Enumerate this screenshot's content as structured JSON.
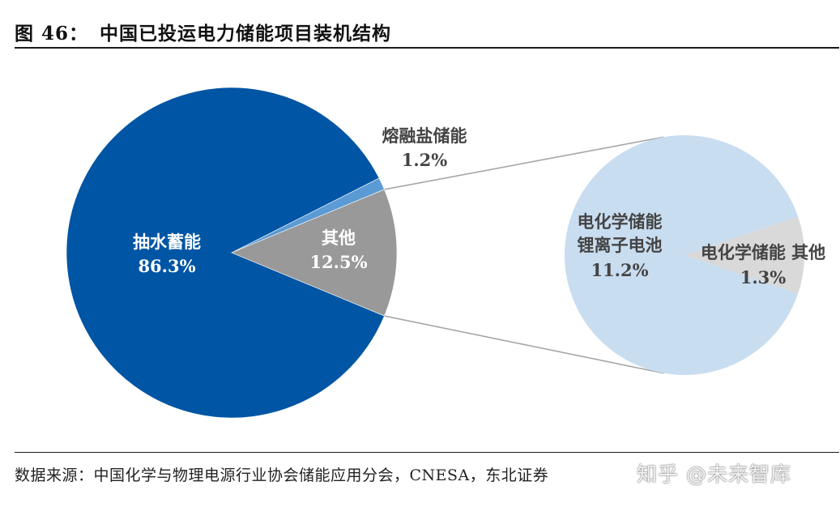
{
  "header": {
    "figure_number": "图 46：",
    "title": "中国已投运电力储能项目装机结构"
  },
  "footer": {
    "source": "数据来源：中国化学与物理电源行业协会储能应用分会，CNESA，东北证券",
    "watermark": "知乎 @未来智库"
  },
  "colors": {
    "pumped_hydro": "#0055A4",
    "molten_salt": "#5B9BD5",
    "other": "#999999",
    "li_ion": "#C9DDF0",
    "ec_other": "#D9D9D9",
    "connector": "#A6A6A6",
    "label_light": "#FFFFFF",
    "label_dark": "#444444"
  },
  "chart_data": [
    {
      "type": "pie",
      "name": "main",
      "slices": [
        {
          "label": "抽水蓄能",
          "value": 86.3,
          "value_label": "86.3%"
        },
        {
          "label": "熔融盐储能",
          "value": 1.2,
          "value_label": "1.2%"
        },
        {
          "label": "其他",
          "value": 12.5,
          "value_label": "12.5%"
        }
      ]
    },
    {
      "type": "pie",
      "name": "breakout",
      "breakout_of": "其他",
      "slices": [
        {
          "label": "电化学储能 锂离子电池",
          "label_lines": [
            "电化学储能",
            "锂离子电池"
          ],
          "value": 11.2,
          "value_label": "11.2%"
        },
        {
          "label": "电化学储能 其他",
          "value": 1.3,
          "value_label": "1.3%"
        }
      ]
    }
  ]
}
